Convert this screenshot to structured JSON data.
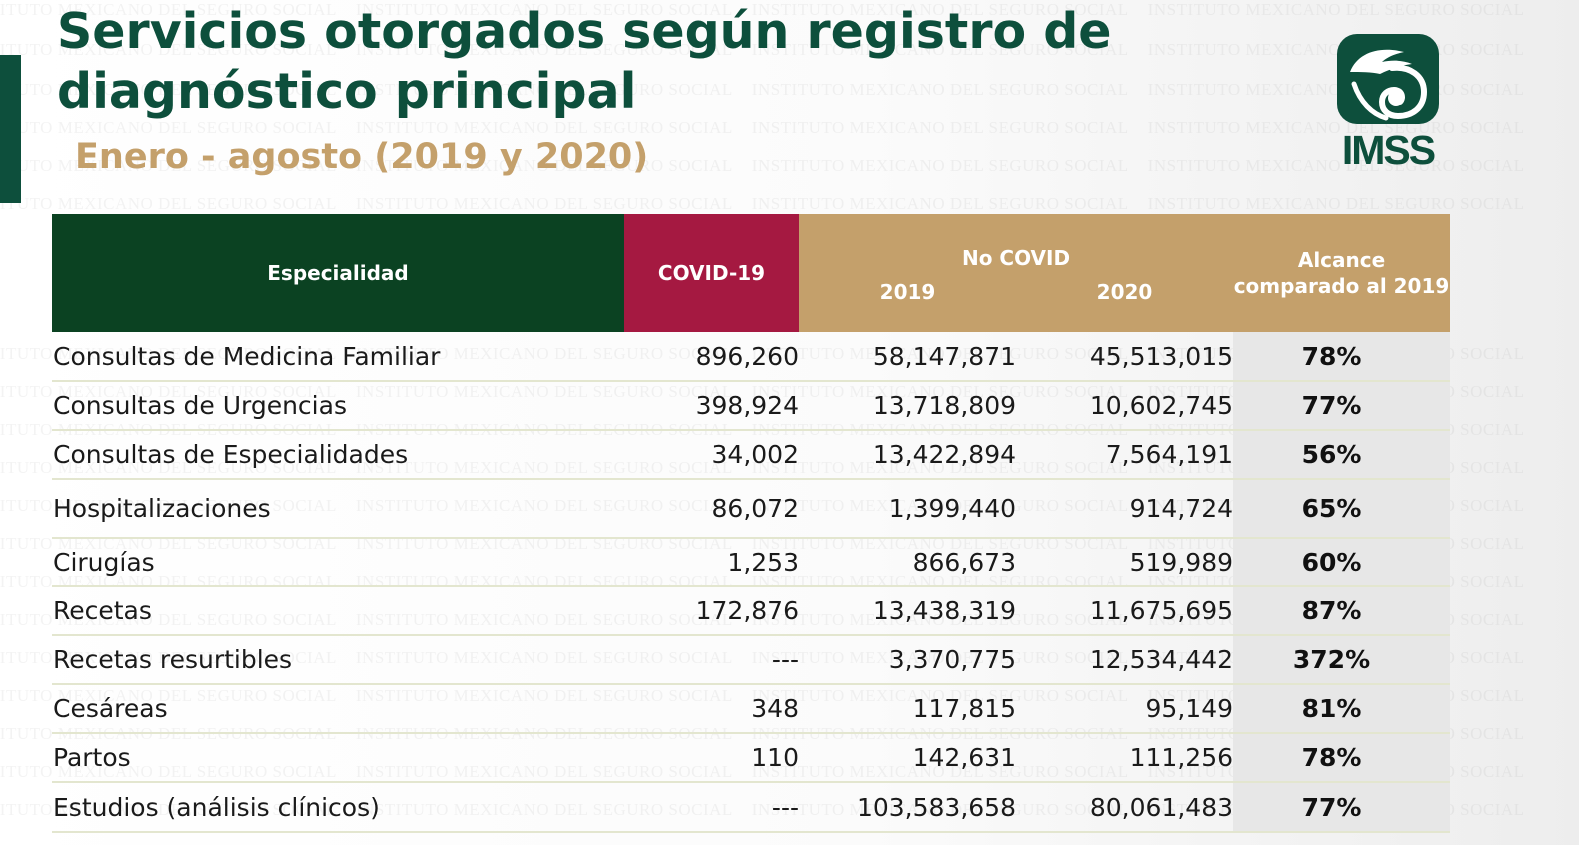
{
  "header": {
    "title": "Servicios otorgados según registro de diagnóstico principal",
    "subtitle": "Enero - agosto (2019 y 2020)",
    "logo_text": "IMSS",
    "watermark_text": "INSTITUTO MEXICANO DEL SEGURO SOCIAL"
  },
  "colors": {
    "green_dark": "#0d4f3c",
    "green_header": "#0b4222",
    "covid_red": "#a51941",
    "gold": "#c4a06b",
    "row_line": "#e3e6cf"
  },
  "table": {
    "headers": {
      "especialidad": "Especialidad",
      "covid": "COVID-19",
      "no_covid": "No COVID",
      "year_2019": "2019",
      "year_2020": "2020",
      "alcance": "Alcance comparado al 2019"
    },
    "rows": [
      {
        "name": "Consultas de Medicina Familiar",
        "covid": "896,260",
        "y2019": "58,147,871",
        "y2020": "45,513,015",
        "alcance": "78%"
      },
      {
        "name": "Consultas de Urgencias",
        "covid": "398,924",
        "y2019": "13,718,809",
        "y2020": "10,602,745",
        "alcance": "77%"
      },
      {
        "name": "Consultas de Especialidades",
        "covid": "34,002",
        "y2019": "13,422,894",
        "y2020": "7,564,191",
        "alcance": "56%"
      },
      {
        "name": "Hospitalizaciones",
        "covid": "86,072",
        "y2019": "1,399,440",
        "y2020": "914,724",
        "alcance": "65%"
      },
      {
        "name": "Cirugías",
        "covid": "1,253",
        "y2019": "866,673",
        "y2020": "519,989",
        "alcance": "60%"
      },
      {
        "name": "Recetas",
        "covid": "172,876",
        "y2019": "13,438,319",
        "y2020": "11,675,695",
        "alcance": "87%"
      },
      {
        "name": "Recetas resurtibles",
        "covid": "---",
        "y2019": "3,370,775",
        "y2020": "12,534,442",
        "alcance": "372%"
      },
      {
        "name": "Cesáreas",
        "covid": "348",
        "y2019": "117,815",
        "y2020": "95,149",
        "alcance": "81%"
      },
      {
        "name": "Partos",
        "covid": "110",
        "y2019": "142,631",
        "y2020": "111,256",
        "alcance": "78%"
      },
      {
        "name": "Estudios (análisis clínicos)",
        "covid": "---",
        "y2019": "103,583,658",
        "y2020": "80,061,483",
        "alcance": "77%"
      }
    ]
  }
}
